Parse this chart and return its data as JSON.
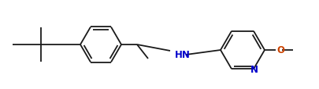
{
  "bg_color": "#ffffff",
  "bond_color": "#1a1a1a",
  "bond_width": 1.3,
  "N_color": "#0000cc",
  "O_color": "#cc4400",
  "figsize": [
    4.05,
    1.15
  ],
  "dpi": 100,
  "xlim": [
    0,
    405
  ],
  "ylim": [
    0,
    115
  ]
}
